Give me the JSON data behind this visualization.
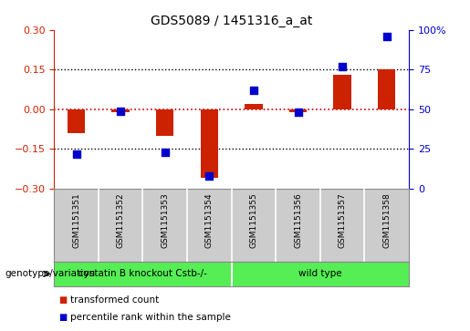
{
  "title": "GDS5089 / 1451316_a_at",
  "samples": [
    "GSM1151351",
    "GSM1151352",
    "GSM1151353",
    "GSM1151354",
    "GSM1151355",
    "GSM1151356",
    "GSM1151357",
    "GSM1151358"
  ],
  "transformed_count": [
    -0.09,
    -0.01,
    -0.1,
    -0.26,
    0.02,
    -0.01,
    0.13,
    0.15
  ],
  "percentile_rank": [
    22,
    49,
    23,
    8,
    62,
    48,
    77,
    96
  ],
  "ylim_left": [
    -0.3,
    0.3
  ],
  "ylim_right": [
    0,
    100
  ],
  "yticks_left": [
    -0.3,
    -0.15,
    0,
    0.15,
    0.3
  ],
  "yticks_right": [
    0,
    25,
    50,
    75,
    100
  ],
  "groups": [
    {
      "label": "cystatin B knockout Cstb-/-",
      "color": "#55ee55"
    },
    {
      "label": "wild type",
      "color": "#55ee55"
    }
  ],
  "group_boundary": 4,
  "bar_color": "#cc2200",
  "dot_color": "#0000cc",
  "dotted_line_color": "#000000",
  "zero_line_color": "#cc0000",
  "bg_color": "#ffffff",
  "plot_bg": "#ffffff",
  "label_color_left": "#cc2200",
  "label_color_right": "#0000cc",
  "cell_bg": "#cccccc",
  "legend_items": [
    {
      "label": "transformed count",
      "color": "#cc2200"
    },
    {
      "label": "percentile rank within the sample",
      "color": "#0000cc"
    }
  ],
  "genotype_label": "genotype/variation",
  "bar_width": 0.4,
  "dot_size": 40
}
